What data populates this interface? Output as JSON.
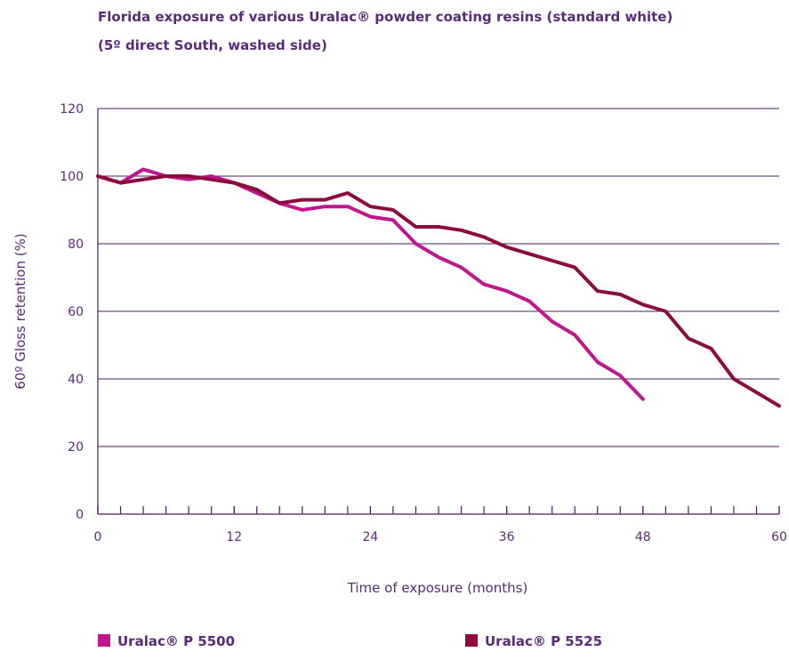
{
  "chart_data": {
    "type": "line",
    "title": "Florida exposure of various Uralac® powder coating resins (standard white)",
    "subtitle": "(5º direct South, washed side)",
    "x_label": "Time of exposure (months)",
    "y_label": "60º Gloss retention (%)",
    "x": [
      0,
      2,
      4,
      6,
      8,
      10,
      12,
      14,
      16,
      18,
      20,
      22,
      24,
      26,
      28,
      30,
      32,
      34,
      36,
      38,
      40,
      42,
      44,
      46,
      48,
      50,
      52,
      54,
      56,
      58,
      60
    ],
    "series": [
      {
        "name": "Uralac® P 5500",
        "color": "#c0178e",
        "values": [
          100,
          98,
          102,
          100,
          99,
          100,
          98,
          95,
          92,
          90,
          91,
          91,
          88,
          87,
          80,
          76,
          73,
          68,
          66,
          63,
          57,
          53,
          45,
          41,
          34,
          null,
          null,
          null,
          null,
          null,
          null
        ]
      },
      {
        "name": "Uralac® P 5525",
        "color": "#8c0c40",
        "values": [
          100,
          98,
          99,
          100,
          100,
          99,
          98,
          96,
          92,
          93,
          93,
          95,
          91,
          90,
          85,
          85,
          84,
          82,
          79,
          77,
          75,
          73,
          66,
          65,
          62,
          60,
          52,
          49,
          40,
          36,
          32
        ]
      }
    ],
    "xlim": [
      0,
      60
    ],
    "xticks": [
      0,
      12,
      24,
      36,
      48,
      60
    ],
    "ylim": [
      0,
      120
    ],
    "yticks": [
      0,
      20,
      40,
      60,
      80,
      100,
      120
    ],
    "grid": true,
    "legend": "bottom"
  }
}
